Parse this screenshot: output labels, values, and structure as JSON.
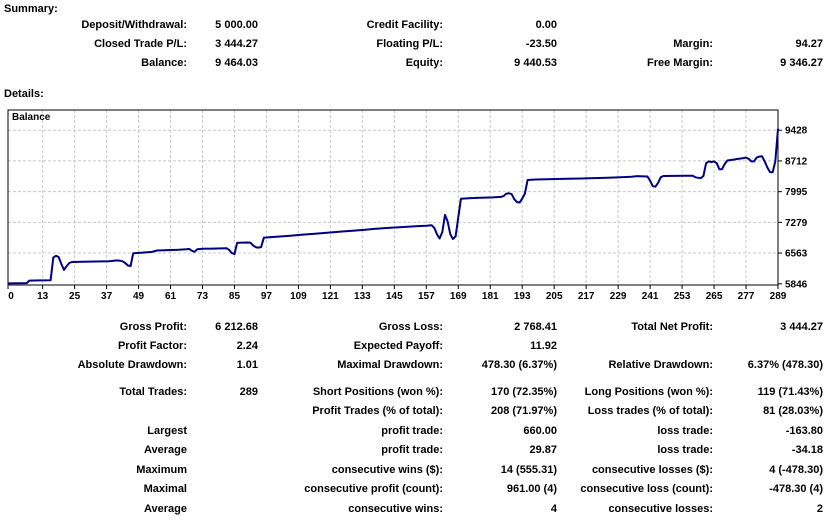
{
  "summary": {
    "heading": "Summary:",
    "rows": [
      {
        "l1": "Deposit/Withdrawal:",
        "v1": "5 000.00",
        "l2": "Credit Facility:",
        "v2": "0.00",
        "l3": "",
        "v3": ""
      },
      {
        "l1": "Closed Trade P/L:",
        "v1": "3 444.27",
        "l2": "Floating P/L:",
        "v2": "-23.50",
        "l3": "Margin:",
        "v3": "94.27"
      },
      {
        "l1": "Balance:",
        "v1": "9 464.03",
        "l2": "Equity:",
        "v2": "9 440.53",
        "l3": "Free Margin:",
        "v3": "9 346.27"
      }
    ]
  },
  "details": {
    "heading": "Details:",
    "rows": [
      {
        "l1": "Gross Profit:",
        "v1": "6 212.68",
        "l2": "Gross Loss:",
        "v2": "2 768.41",
        "l3": "Total Net Profit:",
        "v3": "3 444.27"
      },
      {
        "l1": "Profit Factor:",
        "v1": "2.24",
        "l2": "Expected Payoff:",
        "v2": "11.92",
        "l3": "",
        "v3": ""
      },
      {
        "l1": "Absolute Drawdown:",
        "v1": "1.01",
        "l2": "Maximal Drawdown:",
        "v2": "478.30 (6.37%)",
        "l3": "Relative Drawdown:",
        "v3": "6.37% (478.30)"
      },
      {
        "l1": "Total Trades:",
        "v1": "289",
        "l2": "Short Positions (won %):",
        "v2": "170 (72.35%)",
        "l3": "Long Positions (won %):",
        "v3": "119 (71.43%)"
      },
      {
        "l1": "",
        "v1": "",
        "l2": "Profit Trades (% of total):",
        "v2": "208 (71.97%)",
        "l3": "Loss trades (% of total):",
        "v3": "81 (28.03%)"
      },
      {
        "l1": "Largest",
        "v1": "",
        "l2": "profit trade:",
        "v2": "660.00",
        "l3": "loss trade:",
        "v3": "-163.80"
      },
      {
        "l1": "Average",
        "v1": "",
        "l2": "profit trade:",
        "v2": "29.87",
        "l3": "loss trade:",
        "v3": "-34.18"
      },
      {
        "l1": "Maximum",
        "v1": "",
        "l2": "consecutive wins ($):",
        "v2": "14 (555.31)",
        "l3": "consecutive losses ($):",
        "v3": "4 (-478.30)"
      },
      {
        "l1": "Maximal",
        "v1": "",
        "l2": "consecutive profit (count):",
        "v2": "961.00 (4)",
        "l3": "consecutive loss (count):",
        "v3": "-478.30 (4)"
      },
      {
        "l1": "Average",
        "v1": "",
        "l2": "consecutive wins:",
        "v2": "4",
        "l3": "consecutive losses:",
        "v3": "2"
      }
    ]
  },
  "chart_data": {
    "type": "line",
    "title": "Balance",
    "xlabel": "",
    "ylabel": "",
    "xlim": [
      0,
      289
    ],
    "ylim": [
      5818,
      9900
    ],
    "x_ticks": [
      0,
      13,
      25,
      37,
      49,
      61,
      73,
      85,
      97,
      109,
      121,
      133,
      145,
      157,
      169,
      181,
      193,
      205,
      217,
      229,
      241,
      253,
      265,
      277,
      289
    ],
    "y_ticks": [
      5846,
      6563,
      7279,
      7995,
      8712,
      9428
    ],
    "grid": "dashed",
    "legend_position": "top-left-inside",
    "colors": {
      "line": "#000080",
      "grid": "#c8c8c8",
      "axis": "#000000",
      "background": "#ffffff"
    },
    "series": [
      {
        "name": "Balance",
        "points": [
          [
            0,
            5855
          ],
          [
            4,
            5858
          ],
          [
            7,
            5862
          ],
          [
            8,
            5920
          ],
          [
            12,
            5925
          ],
          [
            16,
            5928
          ],
          [
            17,
            6460
          ],
          [
            18,
            6500
          ],
          [
            19,
            6470
          ],
          [
            20,
            6310
          ],
          [
            21,
            6170
          ],
          [
            22,
            6260
          ],
          [
            23,
            6330
          ],
          [
            24,
            6355
          ],
          [
            28,
            6360
          ],
          [
            33,
            6366
          ],
          [
            38,
            6372
          ],
          [
            41,
            6392
          ],
          [
            42,
            6385
          ],
          [
            43,
            6370
          ],
          [
            44,
            6330
          ],
          [
            45,
            6272
          ],
          [
            46,
            6262
          ],
          [
            47,
            6558
          ],
          [
            50,
            6568
          ],
          [
            54,
            6590
          ],
          [
            56,
            6622
          ],
          [
            60,
            6632
          ],
          [
            64,
            6640
          ],
          [
            67,
            6650
          ],
          [
            68,
            6660
          ],
          [
            69,
            6618
          ],
          [
            70,
            6592
          ],
          [
            71,
            6650
          ],
          [
            73,
            6662
          ],
          [
            77,
            6668
          ],
          [
            80,
            6672
          ],
          [
            82,
            6676
          ],
          [
            83,
            6640
          ],
          [
            84,
            6562
          ],
          [
            85,
            6540
          ],
          [
            86,
            6800
          ],
          [
            88,
            6808
          ],
          [
            90,
            6810
          ],
          [
            91,
            6802
          ],
          [
            92,
            6742
          ],
          [
            93,
            6700
          ],
          [
            94,
            6690
          ],
          [
            95,
            6702
          ],
          [
            96,
            6918
          ],
          [
            98,
            6930
          ],
          [
            102,
            6950
          ],
          [
            106,
            6968
          ],
          [
            110,
            6988
          ],
          [
            114,
            7008
          ],
          [
            118,
            7028
          ],
          [
            122,
            7048
          ],
          [
            126,
            7068
          ],
          [
            130,
            7088
          ],
          [
            134,
            7108
          ],
          [
            138,
            7128
          ],
          [
            142,
            7148
          ],
          [
            146,
            7162
          ],
          [
            150,
            7178
          ],
          [
            154,
            7192
          ],
          [
            157,
            7202
          ],
          [
            159,
            7212
          ],
          [
            160,
            7150
          ],
          [
            161,
            7000
          ],
          [
            162,
            6902
          ],
          [
            163,
            7052
          ],
          [
            164,
            7452
          ],
          [
            165,
            7302
          ],
          [
            166,
            7002
          ],
          [
            167,
            6892
          ],
          [
            168,
            6952
          ],
          [
            169,
            7400
          ],
          [
            170,
            7828
          ],
          [
            173,
            7840
          ],
          [
            176,
            7850
          ],
          [
            179,
            7856
          ],
          [
            182,
            7862
          ],
          [
            185,
            7872
          ],
          [
            186,
            7892
          ],
          [
            187,
            7948
          ],
          [
            188,
            7958
          ],
          [
            189,
            7938
          ],
          [
            190,
            7822
          ],
          [
            191,
            7752
          ],
          [
            192,
            7742
          ],
          [
            193,
            7832
          ],
          [
            194,
            7952
          ],
          [
            195,
            8268
          ],
          [
            198,
            8278
          ],
          [
            202,
            8285
          ],
          [
            206,
            8290
          ],
          [
            210,
            8296
          ],
          [
            215,
            8302
          ],
          [
            220,
            8312
          ],
          [
            225,
            8322
          ],
          [
            230,
            8332
          ],
          [
            234,
            8342
          ],
          [
            236,
            8358
          ],
          [
            240,
            8350
          ],
          [
            241,
            8252
          ],
          [
            242,
            8122
          ],
          [
            243,
            8112
          ],
          [
            244,
            8202
          ],
          [
            245,
            8332
          ],
          [
            246,
            8360
          ],
          [
            250,
            8362
          ],
          [
            254,
            8366
          ],
          [
            257,
            8366
          ],
          [
            258,
            8330
          ],
          [
            260,
            8310
          ],
          [
            261,
            8360
          ],
          [
            262,
            8660
          ],
          [
            263,
            8700
          ],
          [
            264,
            8688
          ],
          [
            265,
            8700
          ],
          [
            266,
            8660
          ],
          [
            267,
            8520
          ],
          [
            268,
            8520
          ],
          [
            269,
            8640
          ],
          [
            270,
            8722
          ],
          [
            272,
            8740
          ],
          [
            274,
            8760
          ],
          [
            276,
            8778
          ],
          [
            277,
            8790
          ],
          [
            278,
            8760
          ],
          [
            279,
            8700
          ],
          [
            280,
            8702
          ],
          [
            281,
            8790
          ],
          [
            282,
            8812
          ],
          [
            283,
            8820
          ],
          [
            284,
            8700
          ],
          [
            285,
            8560
          ],
          [
            286,
            8452
          ],
          [
            287,
            8450
          ],
          [
            288,
            8700
          ],
          [
            289,
            9464
          ]
        ]
      }
    ]
  }
}
